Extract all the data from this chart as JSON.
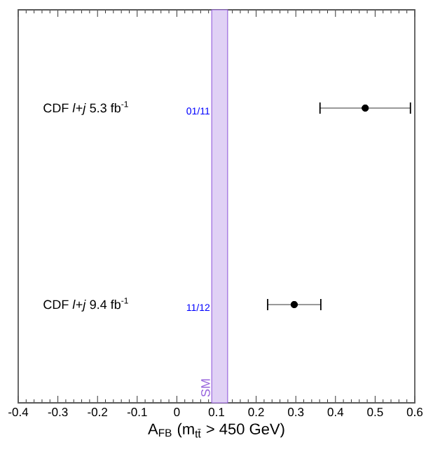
{
  "chart_data": {
    "type": "scatter",
    "orientation": "horizontal",
    "xlabel": "A$_{FB}$ (m$_{tt̄}$ > 450 GeV)",
    "categories": [
      "CDF *l*+*j* 5.3 fb$^{-1}$",
      "CDF *l*+*j* 9.4 fb$^{-1}$"
    ],
    "values": [
      0.475,
      0.296
    ],
    "errors": [
      0.114,
      0.067
    ],
    "color": "#000000",
    "marker": "circle",
    "xlim": [
      -0.4,
      0.6
    ],
    "xticks": [
      -0.4,
      -0.3,
      -0.2,
      -0.1,
      0,
      0.1,
      0.2,
      0.3,
      0.4,
      0.5,
      0.6
    ],
    "bands": [
      {
        "axis": "x",
        "from": 0.088,
        "to": 0.128,
        "label": "SM",
        "color": "#9966dd"
      }
    ],
    "annotations": [
      "01/11",
      "11/12"
    ]
  }
}
